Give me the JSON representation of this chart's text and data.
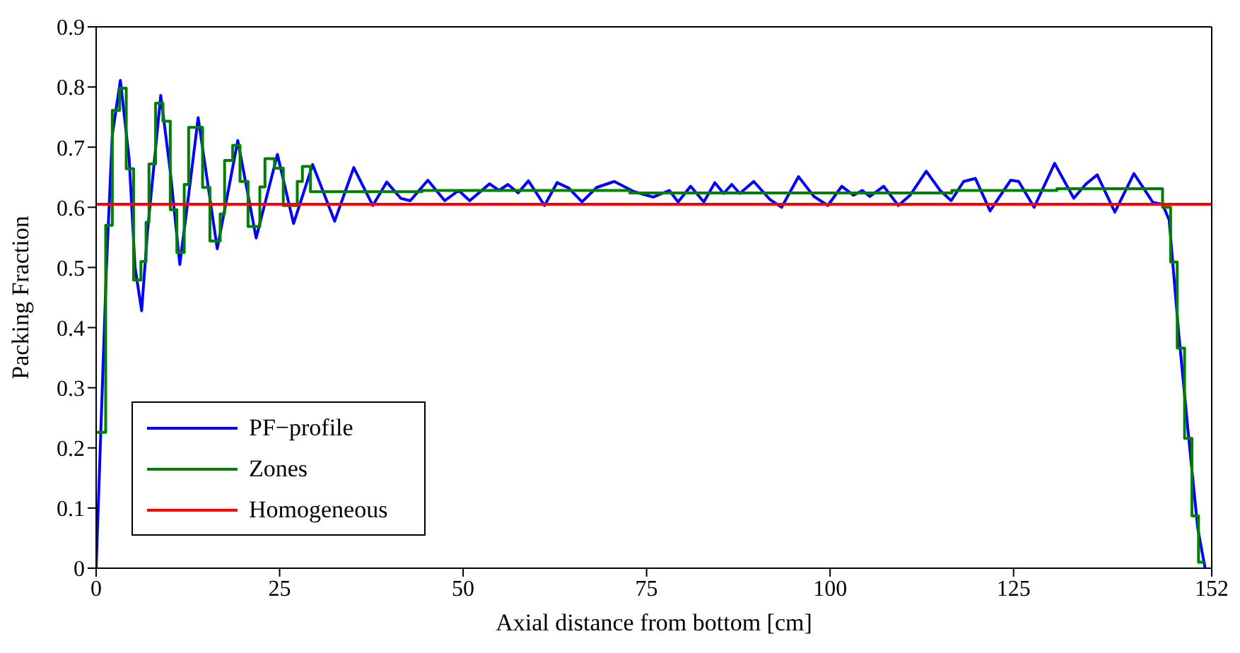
{
  "chart_data": {
    "type": "line",
    "xlabel": "Axial distance from bottom [cm]",
    "ylabel": "Packing Fraction",
    "xlim": [
      0,
      152
    ],
    "ylim": [
      0,
      0.9
    ],
    "xticks": [
      0,
      25,
      50,
      75,
      100,
      125,
      152
    ],
    "yticks": [
      0,
      0.1,
      0.2,
      0.3,
      0.4,
      0.5,
      0.6,
      0.7,
      0.8,
      0.9
    ],
    "grid": false,
    "legend": "bottom left",
    "series": [
      {
        "name": "PF−profile",
        "color": "#0000ff",
        "x": [
          0,
          1.4,
          2.2,
          3.3,
          4.5,
          5.3,
          6.2,
          7.0,
          8.8,
          10.1,
          11.4,
          12.6,
          13.9,
          15.2,
          16.5,
          19.3,
          21.8,
          24.7,
          26.9,
          29.5,
          32.5,
          35.1,
          37.7,
          39.6,
          41.5,
          42.8,
          45.2,
          47.5,
          49.4,
          50.9,
          53.6,
          54.9,
          56.1,
          57.5,
          58.9,
          61.1,
          62.8,
          64.4,
          66.2,
          68.2,
          70.6,
          73.3,
          75.9,
          78.1,
          79.3,
          81.0,
          82.8,
          84.3,
          85.5,
          86.6,
          87.7,
          89.6,
          91.8,
          93.4,
          95.7,
          97.8,
          99.7,
          101.6,
          103.2,
          104.4,
          105.4,
          107.3,
          109.3,
          110.9,
          113.1,
          115.0,
          116.5,
          118.2,
          119.8,
          121.8,
          124.6,
          125.7,
          127.8,
          130.6,
          133.2,
          134.8,
          136.4,
          138.8,
          141.4,
          144.0,
          145.3,
          146.2,
          147.5,
          148.8,
          150.1,
          151.1
        ],
        "values": [
          0.0,
          0.5,
          0.72,
          0.811,
          0.68,
          0.5,
          0.428,
          0.56,
          0.786,
          0.66,
          0.505,
          0.62,
          0.749,
          0.64,
          0.531,
          0.711,
          0.549,
          0.688,
          0.573,
          0.671,
          0.577,
          0.666,
          0.603,
          0.642,
          0.615,
          0.611,
          0.645,
          0.611,
          0.628,
          0.611,
          0.639,
          0.628,
          0.638,
          0.624,
          0.644,
          0.603,
          0.641,
          0.632,
          0.609,
          0.633,
          0.643,
          0.626,
          0.617,
          0.628,
          0.609,
          0.635,
          0.609,
          0.641,
          0.623,
          0.638,
          0.623,
          0.643,
          0.613,
          0.6,
          0.651,
          0.618,
          0.603,
          0.635,
          0.62,
          0.628,
          0.618,
          0.635,
          0.603,
          0.62,
          0.66,
          0.628,
          0.611,
          0.643,
          0.648,
          0.594,
          0.645,
          0.643,
          0.6,
          0.673,
          0.615,
          0.638,
          0.654,
          0.592,
          0.656,
          0.608,
          0.605,
          0.579,
          0.391,
          0.225,
          0.066,
          0.0
        ]
      },
      {
        "name": "Zones",
        "type": "step",
        "color": "#008000",
        "x": [
          0.1,
          1.3,
          2.2,
          3.2,
          4.1,
          5.1,
          6.1,
          6.8,
          7.2,
          8.1,
          9.1,
          10.1,
          11.0,
          12.0,
          12.6,
          14.5,
          15.5,
          16.9,
          17.5,
          18.6,
          19.6,
          20.7,
          22.3,
          23.0,
          24.3,
          25.5,
          27.4,
          28.1,
          29.2,
          44.4,
          72.7,
          116.6,
          130.9,
          145.3,
          146.4,
          147.3,
          148.3,
          149.3,
          150.2,
          151.0
        ],
        "values": [
          0.226,
          0.57,
          0.761,
          0.798,
          0.664,
          0.479,
          0.51,
          0.575,
          0.672,
          0.773,
          0.743,
          0.596,
          0.525,
          0.638,
          0.733,
          0.633,
          0.544,
          0.589,
          0.678,
          0.703,
          0.643,
          0.568,
          0.634,
          0.681,
          0.665,
          0.603,
          0.643,
          0.668,
          0.626,
          0.628,
          0.624,
          0.628,
          0.631,
          0.6,
          0.509,
          0.366,
          0.216,
          0.087,
          0.01,
          0.01
        ]
      },
      {
        "name": "Homogeneous",
        "color": "#ff0000",
        "x": [
          0,
          152
        ],
        "values": [
          0.605,
          0.605
        ]
      }
    ]
  }
}
